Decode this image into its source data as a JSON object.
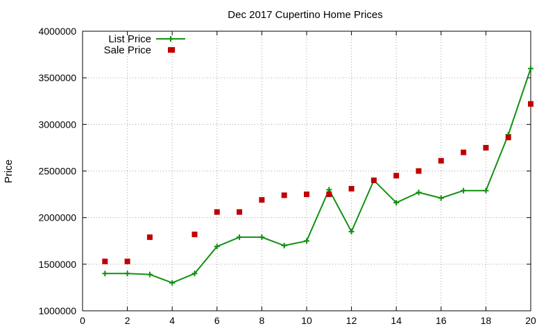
{
  "chart_data": {
    "type": "line",
    "title": "Dec 2017 Cupertino Home Prices",
    "xlabel": "",
    "ylabel": "Price",
    "xlim": [
      0,
      20
    ],
    "ylim": [
      1000000,
      4000000
    ],
    "x_ticks": [
      "0",
      "2",
      "4",
      "6",
      "8",
      "10",
      "12",
      "14",
      "16",
      "18",
      "20"
    ],
    "y_ticks": [
      "1000000",
      "1500000",
      "2000000",
      "2500000",
      "3000000",
      "3500000",
      "4000000"
    ],
    "grid": true,
    "legend_position": "top-left",
    "x": [
      1,
      2,
      3,
      4,
      5,
      6,
      7,
      8,
      9,
      10,
      11,
      12,
      13,
      14,
      15,
      16,
      17,
      18,
      19,
      20
    ],
    "series": [
      {
        "name": "List Price",
        "style": "line-with-plus-markers",
        "color": "#109010",
        "values": [
          1400000,
          1400000,
          1390000,
          1300000,
          1400000,
          1690000,
          1790000,
          1790000,
          1700000,
          1750000,
          2300000,
          1850000,
          2400000,
          2160000,
          2270000,
          2210000,
          2290000,
          2290000,
          2890000,
          3600000
        ]
      },
      {
        "name": "Sale Price",
        "style": "square-markers",
        "color": "#c00000",
        "values": [
          1530000,
          1530000,
          1790000,
          3800000,
          1820000,
          2060000,
          2060000,
          2190000,
          2240000,
          2250000,
          2250000,
          2310000,
          2400000,
          2450000,
          2500000,
          2610000,
          2700000,
          2750000,
          2860000,
          3220000
        ]
      }
    ]
  }
}
